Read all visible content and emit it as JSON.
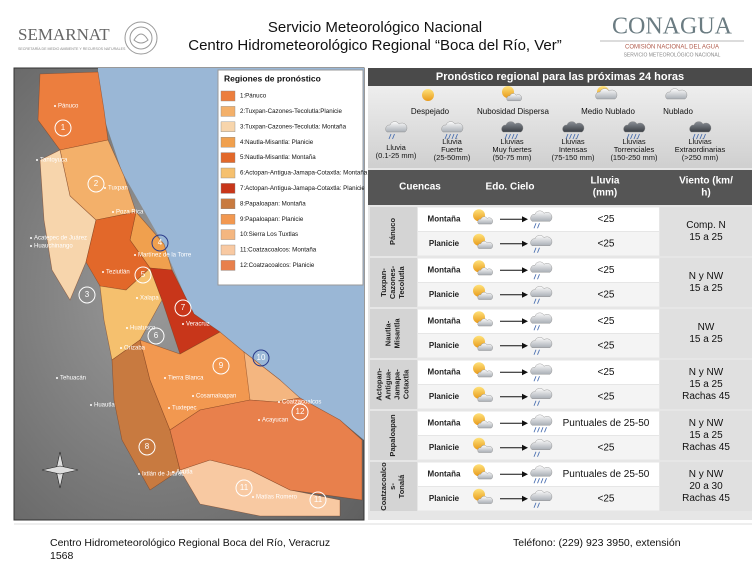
{
  "header": {
    "agency": "SEMARNAT",
    "agency_sub": "SECRETARÍA DE MEDIO AMBIENTE Y RECURSOS NATURALES",
    "title_line_1": "Servicio Meteorológico Nacional",
    "title_line_2": "Centro Hidrometeorológico Regional “Boca del Río, Ver”",
    "logo": "CONAGUA",
    "logo_sub_1": "COMISIÓN NACIONAL DEL AGUA",
    "logo_sub_2": "SERVICIO METEOROLÓGICO NACIONAL"
  },
  "map": {
    "legend_title": "Regiones de pronóstico",
    "legend": [
      {
        "label": "1:Pánuco",
        "color": "#ec7e3e"
      },
      {
        "label": "2:Tuxpan-Cazones-Tecolutla:Planicie",
        "color": "#f3b06a"
      },
      {
        "label": "3:Tuxpan-Cazones-Tecolutla: Montaña",
        "color": "#f7d5ac"
      },
      {
        "label": "4:Nautla-Misantla: Planicie",
        "color": "#f0a04e"
      },
      {
        "label": "5:Nautla-Misantla: Montaña",
        "color": "#e2682a"
      },
      {
        "label": "6:Actopan-Antigua-Jamapa-Cotaxtla: Montaña",
        "color": "#f5c06e"
      },
      {
        "label": "7:Actopan-Antigua-Jamapa-Cotaxtla: Planicie",
        "color": "#c8361a"
      },
      {
        "label": "8:Papaloapan: Montaña",
        "color": "#c87a40"
      },
      {
        "label": "9:Papaloapan: Planicie",
        "color": "#f29850"
      },
      {
        "label": "10:Sierra Los Tuxtlas",
        "color": "#f4b680"
      },
      {
        "label": "11:Coatzacoalcos: Montaña",
        "color": "#f8c9a2"
      },
      {
        "label": "12:Coatzacoalcos: Planicie",
        "color": "#e8804c"
      }
    ],
    "region_numbers": [
      "1",
      "2",
      "3",
      "4",
      "5",
      "6",
      "7",
      "8",
      "9",
      "10",
      "11",
      "12",
      "11"
    ],
    "places": [
      "Pánuco",
      "Tantoyuca",
      "Tuxpan",
      "Poza Rica",
      "Acatepec de Juárez",
      "Huauchinango",
      "Martínez de la Torre",
      "Teziutlán",
      "Xalapa",
      "Veracruz",
      "Huatusco",
      "Orizaba",
      "Tehuacán",
      "Tierra Blanca",
      "Cosamaloapan",
      "Huautla",
      "Tuxtepec",
      "Ixtlán de Juárez",
      "Ayutla",
      "Acayucan",
      "Coatzacoalcos",
      "Matías Romero"
    ]
  },
  "forecast": {
    "title": "Pronóstico regional para las próximas 24 horas",
    "sky_legend": [
      "Despejado",
      "Nubosidad Dispersa",
      "Medio Nublado",
      "Nublado"
    ],
    "rain_legend": [
      {
        "name": [
          "Lluvia"
        ],
        "range": "(0.1-25 mm)"
      },
      {
        "name": [
          "Lluvia",
          "Fuerte"
        ],
        "range": "(25-50mm)"
      },
      {
        "name": [
          "Lluvias",
          "Muy fuertes"
        ],
        "range": "(50-75 mm)"
      },
      {
        "name": [
          "Lluvias",
          "Intensas"
        ],
        "range": "(75-150 mm)"
      },
      {
        "name": [
          "Lluvias",
          "Torrenciales"
        ],
        "range": "(150-250 mm)"
      },
      {
        "name": [
          "Lluvias",
          "Extraordinarias"
        ],
        "range": "(>250 mm)"
      }
    ],
    "columns": [
      [
        "Cuencas"
      ],
      [
        "Edo. Cielo"
      ],
      [
        "Lluvia",
        "(mm)"
      ],
      [
        "Viento (km/",
        "h)"
      ]
    ],
    "basins": [
      {
        "name": [
          "Pánuco"
        ],
        "rows": [
          {
            "zone": "Montaña",
            "rain": "<25"
          },
          {
            "zone": "Planicie",
            "rain": "<25"
          }
        ],
        "wind": [
          "Comp. N",
          "15 a 25"
        ]
      },
      {
        "name": [
          "Tuxpan-",
          "Cazones-",
          "Tecolutla"
        ],
        "rows": [
          {
            "zone": "Montaña",
            "rain": "<25"
          },
          {
            "zone": "Planicie",
            "rain": "<25"
          }
        ],
        "wind": [
          "N y NW",
          "15 a 25"
        ]
      },
      {
        "name": [
          "Nautla-",
          "Misantla"
        ],
        "rows": [
          {
            "zone": "Montaña",
            "rain": "<25"
          },
          {
            "zone": "Planicie",
            "rain": "<25"
          }
        ],
        "wind": [
          "NW",
          "15 a 25"
        ]
      },
      {
        "name": [
          "Actopan-",
          "Antigua-",
          "Jamapa-",
          "Cotaxtla"
        ],
        "rows": [
          {
            "zone": "Montaña",
            "rain": "<25"
          },
          {
            "zone": "Planicie",
            "rain": "<25"
          }
        ],
        "wind": [
          "N y NW",
          "15 a 25",
          "Rachas 45"
        ]
      },
      {
        "name": [
          "Papaloapan"
        ],
        "rows": [
          {
            "zone": "Montaña",
            "rain": "Puntuales de 25-50"
          },
          {
            "zone": "Planicie",
            "rain": "<25"
          }
        ],
        "wind": [
          "N y NW",
          "15 a 25",
          "Rachas 45"
        ]
      },
      {
        "name": [
          "Coatzacoalco",
          "s-",
          "Tonalá"
        ],
        "rows": [
          {
            "zone": "Montaña",
            "rain": "Puntuales de 25-50"
          },
          {
            "zone": "Planicie",
            "rain": "<25"
          }
        ],
        "wind": [
          "N y NW",
          "20 a 30",
          "Rachas 45"
        ]
      }
    ]
  },
  "footer": {
    "address_1": "Centro Hidrometeorológico Regional Boca del Río, Veracruz",
    "address_2": "1568",
    "phone": "Teléfono: (229) 923 3950, extensión"
  }
}
